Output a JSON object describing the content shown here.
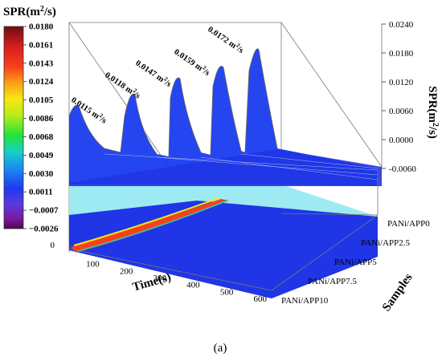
{
  "colorbar": {
    "title_main": "SPR(m",
    "title_sup": "2",
    "title_end": "/s)",
    "ticks": [
      "0.0180",
      "0.0161",
      "0.0143",
      "0.0124",
      "0.0105",
      "0.0086",
      "0.0068",
      "0.0049",
      "0.0030",
      "0.0011",
      "−0.0007",
      "−0.0026"
    ]
  },
  "z_axis": {
    "title_main": "SPR(m",
    "title_sup": "2",
    "title_end": "/s)",
    "ticks": [
      "0.0240",
      "0.0180",
      "0.0120",
      "0.0060",
      "0.0000",
      "-0.0060"
    ]
  },
  "x_axis": {
    "title": "Time(s)",
    "ticks": [
      "0",
      "100",
      "200",
      "300",
      "400",
      "500",
      "600"
    ]
  },
  "y_axis": {
    "title": "Samples",
    "ticks": [
      "PANi/APP0",
      "PANi/APP2.5",
      "PANi/APP5",
      "PANi/APP7.5",
      "PANi/APP10"
    ]
  },
  "annotations": [
    {
      "value": "0.0115",
      "unit_main": "m",
      "unit_sup": "2",
      "unit_end": "/s"
    },
    {
      "value": "0.0118",
      "unit_main": "m",
      "unit_sup": "2",
      "unit_end": "/s"
    },
    {
      "value": "0.0147",
      "unit_main": "m",
      "unit_sup": "2",
      "unit_end": "/s"
    },
    {
      "value": "0.0159",
      "unit_main": "m",
      "unit_sup": "2",
      "unit_end": "/s"
    },
    {
      "value": "0.0172",
      "unit_main": "m",
      "unit_sup": "2",
      "unit_end": "/s"
    }
  ],
  "caption": "(a)",
  "chart_data": {
    "type": "area",
    "xlabel": "Time(s)",
    "ylabel": "Samples",
    "zlabel": "SPR(m2/s)",
    "xlim": [
      0,
      600
    ],
    "zlim": [
      -0.006,
      0.024
    ],
    "colorbar_range": [
      -0.0026,
      0.018
    ],
    "categories": [
      "PANi/APP0",
      "PANi/APP2.5",
      "PANi/APP5",
      "PANi/APP7.5",
      "PANi/APP10"
    ],
    "peaks": [
      {
        "sample": "PANi/APP0",
        "peak_spr": 0.0172,
        "peak_time": 110
      },
      {
        "sample": "PANi/APP2.5",
        "peak_spr": 0.0159,
        "peak_time": 70
      },
      {
        "sample": "PANi/APP5",
        "peak_spr": 0.0147,
        "peak_time": 60
      },
      {
        "sample": "PANi/APP7.5",
        "peak_spr": 0.0118,
        "peak_time": 45
      },
      {
        "sample": "PANi/APP10",
        "peak_spr": 0.0115,
        "peak_time": 30
      }
    ],
    "grid": true
  }
}
